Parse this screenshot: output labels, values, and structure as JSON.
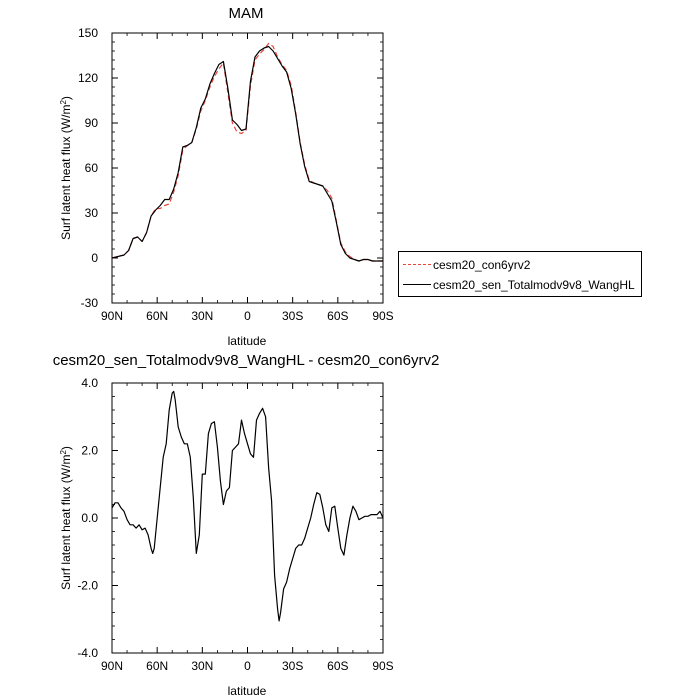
{
  "colors": {
    "control": "#e8443a",
    "test": "#000000",
    "diff": "#000000"
  },
  "chart_data": [
    {
      "type": "line",
      "title": "MAM",
      "xlabel": "latitude",
      "ylabel": "Surf latent heat flux (W/m",
      "ylabel_sup": "2",
      "ylabel_end": ")",
      "xlim": [
        90,
        -90
      ],
      "ylim": [
        -30,
        150
      ],
      "xticks": [
        90,
        60,
        30,
        0,
        -30,
        -60,
        -90
      ],
      "xtick_labels": [
        "90N",
        "60N",
        "30N",
        "0",
        "30S",
        "60S",
        "90S"
      ],
      "yticks": [
        -30,
        0,
        30,
        60,
        90,
        120,
        150
      ],
      "ytick_labels": [
        "-30",
        "0",
        "30",
        "60",
        "90",
        "120",
        "150"
      ],
      "legend_position": "right",
      "series": [
        {
          "name": "cesm20_con6yrv2",
          "style": "dashed",
          "x": [
            90,
            86,
            82,
            79,
            76,
            73,
            70,
            67,
            64,
            61,
            58,
            55,
            52,
            49,
            46,
            43,
            40,
            37,
            34,
            31,
            28,
            25,
            22,
            19,
            16,
            13,
            10,
            7,
            4,
            1,
            -2,
            -5,
            -8,
            -11,
            -14,
            -17,
            -20,
            -23,
            -26,
            -29,
            -32,
            -35,
            -38,
            -41,
            -44,
            -47,
            -50,
            -53,
            -56,
            -59,
            -62,
            -65,
            -68,
            -71,
            -74,
            -77,
            -80,
            -83,
            -86,
            -90
          ],
          "y": [
            0,
            1,
            2,
            5,
            13,
            14,
            11,
            17,
            28,
            33,
            33,
            35,
            36,
            44,
            55,
            72,
            75,
            77,
            86,
            98,
            105,
            114,
            121,
            126,
            130,
            110,
            90,
            84,
            83,
            85,
            115,
            132,
            136,
            139,
            143,
            141,
            134,
            129,
            125,
            115,
            97,
            77,
            62,
            52,
            50,
            49,
            48,
            45,
            40,
            25,
            10,
            4,
            1,
            -1,
            -2,
            -1,
            -1,
            -2,
            -2,
            -2
          ]
        },
        {
          "name": "cesm20_sen_Totalmodv9v8_WangHL",
          "style": "solid",
          "x": [
            90,
            86,
            82,
            79,
            76,
            73,
            70,
            67,
            64,
            61,
            58,
            55,
            52,
            49,
            46,
            43,
            40,
            37,
            34,
            31,
            28,
            25,
            22,
            19,
            16,
            13,
            10,
            7,
            4,
            1,
            -2,
            -5,
            -8,
            -11,
            -14,
            -17,
            -20,
            -23,
            -26,
            -29,
            -32,
            -35,
            -38,
            -41,
            -44,
            -47,
            -50,
            -53,
            -56,
            -59,
            -62,
            -65,
            -68,
            -71,
            -74,
            -77,
            -80,
            -83,
            -86,
            -90
          ],
          "y": [
            0,
            1,
            2,
            5,
            13,
            14,
            11,
            17,
            28,
            32,
            35,
            39,
            39,
            46,
            57,
            74,
            75,
            77,
            87,
            100,
            106,
            116,
            123,
            129,
            131,
            113,
            92,
            89,
            85,
            86,
            118,
            134,
            138,
            140,
            141,
            138,
            133,
            128,
            124,
            113,
            96,
            76,
            61,
            51,
            50,
            49,
            48,
            43,
            38,
            24,
            9,
            3,
            0,
            -1,
            -2,
            -1,
            -1,
            -2,
            -2,
            -2
          ]
        }
      ]
    },
    {
      "type": "line",
      "title": "cesm20_sen_Totalmodv9v8_WangHL - cesm20_con6yrv2",
      "xlabel": "latitude",
      "ylabel": "Surf latent heat flux (W/m",
      "ylabel_sup": "2",
      "ylabel_end": ")",
      "xlim": [
        90,
        -90
      ],
      "ylim": [
        -4,
        4
      ],
      "xticks": [
        90,
        60,
        30,
        0,
        -30,
        -60,
        -90
      ],
      "xtick_labels": [
        "90N",
        "60N",
        "30N",
        "0",
        "30S",
        "60S",
        "90S"
      ],
      "yticks": [
        -4,
        -2,
        0,
        2,
        4
      ],
      "ytick_labels": [
        "-4.0",
        "-2.0",
        "0.0",
        "2.0",
        "4.0"
      ],
      "series": [
        {
          "name": "",
          "style": "solid",
          "x": [
            90,
            88,
            86,
            84,
            82,
            80,
            78,
            76,
            74,
            72,
            70,
            68,
            66,
            64,
            63,
            62,
            60,
            58,
            56,
            54,
            52,
            50,
            49,
            48,
            46,
            44,
            42,
            40,
            38,
            36,
            34,
            32,
            30,
            28,
            26,
            24,
            22,
            20,
            18,
            16,
            14,
            12,
            10,
            8,
            6,
            4,
            2,
            0,
            -2,
            -4,
            -6,
            -8,
            -10,
            -12,
            -14,
            -16,
            -18,
            -20,
            -21,
            -22,
            -24,
            -26,
            -28,
            -30,
            -32,
            -34,
            -36,
            -38,
            -40,
            -42,
            -44,
            -46,
            -48,
            -50,
            -52,
            -54,
            -56,
            -58,
            -60,
            -62,
            -64,
            -66,
            -68,
            -70,
            -72,
            -74,
            -76,
            -78,
            -80,
            -82,
            -84,
            -86,
            -88,
            -90
          ],
          "y": [
            0.3,
            0.45,
            0.45,
            0.3,
            0.2,
            -0.05,
            -0.2,
            -0.2,
            -0.3,
            -0.2,
            -0.35,
            -0.3,
            -0.5,
            -0.9,
            -1.05,
            -0.9,
            0.0,
            0.9,
            1.8,
            2.2,
            3.2,
            3.7,
            3.75,
            3.5,
            2.7,
            2.4,
            2.2,
            2.2,
            1.8,
            0.6,
            -1.05,
            -0.5,
            1.3,
            1.3,
            2.5,
            2.8,
            2.85,
            2.1,
            1.1,
            0.4,
            0.8,
            0.9,
            2.0,
            2.1,
            2.2,
            2.9,
            2.5,
            2.2,
            1.9,
            1.8,
            2.9,
            3.1,
            3.25,
            3.0,
            1.5,
            0.5,
            -1.7,
            -2.7,
            -3.05,
            -2.8,
            -2.1,
            -1.9,
            -1.5,
            -1.2,
            -0.9,
            -0.8,
            -0.8,
            -0.6,
            -0.3,
            0.0,
            0.4,
            0.75,
            0.7,
            0.3,
            -0.2,
            -0.4,
            0.3,
            0.35,
            -0.3,
            -0.9,
            -1.1,
            -0.5,
            0.0,
            0.35,
            0.2,
            -0.05,
            0.0,
            0.05,
            0.05,
            0.1,
            0.1,
            0.1,
            0.2,
            0.0
          ]
        }
      ]
    }
  ]
}
